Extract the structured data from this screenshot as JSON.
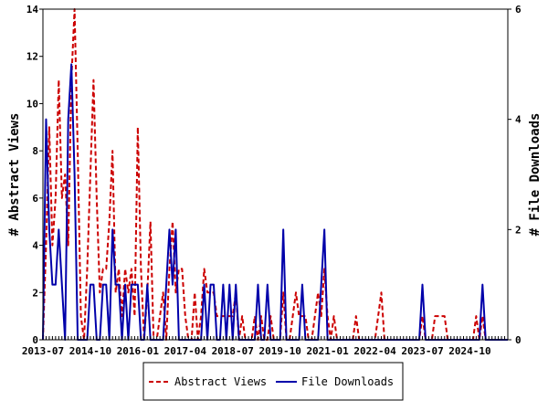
{
  "chart_data": {
    "type": "line",
    "xlabel": "",
    "ylabel_left": "# Abstract Views",
    "ylabel_right": "# File Downloads",
    "ylim_left": [
      0,
      14
    ],
    "ylim_right": [
      0,
      6
    ],
    "yticks_left": [
      0,
      2,
      4,
      6,
      8,
      10,
      12,
      14
    ],
    "yticks_right": [
      0,
      2,
      4,
      6
    ],
    "x_start": "2013-07",
    "x_end": "2025-10",
    "x_tick_labels": [
      "2013-07",
      "2014-10",
      "2016-01",
      "2017-04",
      "2018-07",
      "2019-10",
      "2021-01",
      "2022-04",
      "2023-07",
      "2024-10"
    ],
    "grid": false,
    "legend_position": "bottom",
    "series": [
      {
        "name": "Abstract Views",
        "axis": "left",
        "color": "#cc0000",
        "style": "dashed",
        "points": [
          [
            "2013-07",
            0
          ],
          [
            "2013-08",
            4
          ],
          [
            "2013-09",
            9
          ],
          [
            "2013-10",
            4
          ],
          [
            "2013-11",
            6
          ],
          [
            "2013-12",
            11
          ],
          [
            "2014-01",
            6
          ],
          [
            "2014-02",
            7
          ],
          [
            "2014-03",
            4
          ],
          [
            "2014-04",
            11
          ],
          [
            "2014-05",
            14
          ],
          [
            "2014-06",
            8
          ],
          [
            "2014-07",
            1
          ],
          [
            "2014-08",
            0
          ],
          [
            "2014-09",
            3
          ],
          [
            "2014-10",
            7
          ],
          [
            "2014-11",
            11
          ],
          [
            "2014-12",
            6
          ],
          [
            "2015-01",
            2
          ],
          [
            "2015-02",
            3
          ],
          [
            "2015-03",
            3
          ],
          [
            "2015-04",
            5
          ],
          [
            "2015-05",
            8
          ],
          [
            "2015-06",
            2
          ],
          [
            "2015-07",
            3
          ],
          [
            "2015-08",
            1
          ],
          [
            "2015-09",
            3
          ],
          [
            "2015-10",
            2
          ],
          [
            "2015-11",
            3
          ],
          [
            "2015-12",
            1
          ],
          [
            "2016-01",
            9
          ],
          [
            "2016-02",
            3
          ],
          [
            "2016-03",
            0
          ],
          [
            "2016-04",
            2
          ],
          [
            "2016-05",
            5
          ],
          [
            "2016-06",
            0
          ],
          [
            "2016-07",
            0
          ],
          [
            "2016-08",
            1
          ],
          [
            "2016-09",
            2
          ],
          [
            "2016-10",
            0
          ],
          [
            "2016-11",
            3
          ],
          [
            "2016-12",
            5
          ],
          [
            "2017-01",
            2
          ],
          [
            "2017-02",
            3
          ],
          [
            "2017-03",
            3
          ],
          [
            "2017-04",
            1
          ],
          [
            "2017-05",
            0
          ],
          [
            "2017-06",
            0
          ],
          [
            "2017-07",
            2
          ],
          [
            "2017-08",
            0
          ],
          [
            "2017-09",
            1
          ],
          [
            "2017-10",
            3
          ],
          [
            "2017-11",
            2
          ],
          [
            "2017-12",
            2
          ],
          [
            "2018-01",
            2
          ],
          [
            "2018-02",
            1
          ],
          [
            "2018-03",
            1
          ],
          [
            "2018-04",
            1
          ],
          [
            "2018-05",
            1
          ],
          [
            "2018-06",
            1
          ],
          [
            "2018-07",
            1
          ],
          [
            "2018-08",
            2
          ],
          [
            "2018-09",
            0
          ],
          [
            "2018-10",
            1
          ],
          [
            "2018-11",
            0
          ],
          [
            "2018-12",
            0
          ],
          [
            "2019-01",
            0
          ],
          [
            "2019-02",
            1
          ],
          [
            "2019-03",
            0
          ],
          [
            "2019-04",
            1
          ],
          [
            "2019-05",
            0
          ],
          [
            "2019-06",
            0
          ],
          [
            "2019-07",
            1
          ],
          [
            "2019-08",
            0
          ],
          [
            "2019-09",
            0
          ],
          [
            "2019-10",
            0
          ],
          [
            "2019-11",
            2
          ],
          [
            "2019-12",
            0
          ],
          [
            "2020-01",
            0
          ],
          [
            "2020-02",
            1
          ],
          [
            "2020-03",
            2
          ],
          [
            "2020-04",
            1
          ],
          [
            "2020-05",
            1
          ],
          [
            "2020-06",
            1
          ],
          [
            "2020-07",
            0
          ],
          [
            "2020-08",
            0
          ],
          [
            "2020-09",
            1
          ],
          [
            "2020-10",
            2
          ],
          [
            "2020-11",
            1
          ],
          [
            "2020-12",
            3
          ],
          [
            "2021-01",
            1
          ],
          [
            "2021-02",
            0
          ],
          [
            "2021-03",
            1
          ],
          [
            "2021-04",
            0
          ],
          [
            "2021-05",
            0
          ],
          [
            "2021-06",
            0
          ],
          [
            "2021-07",
            0
          ],
          [
            "2021-08",
            0
          ],
          [
            "2021-09",
            0
          ],
          [
            "2021-10",
            1
          ],
          [
            "2021-11",
            0
          ],
          [
            "2021-12",
            0
          ],
          [
            "2022-01",
            0
          ],
          [
            "2022-02",
            0
          ],
          [
            "2022-03",
            0
          ],
          [
            "2022-04",
            0
          ],
          [
            "2022-05",
            1
          ],
          [
            "2022-06",
            2
          ],
          [
            "2022-07",
            0
          ],
          [
            "2022-08",
            0
          ],
          [
            "2022-09",
            0
          ],
          [
            "2022-10",
            0
          ],
          [
            "2022-11",
            0
          ],
          [
            "2022-12",
            0
          ],
          [
            "2023-01",
            0
          ],
          [
            "2023-02",
            0
          ],
          [
            "2023-03",
            0
          ],
          [
            "2023-04",
            0
          ],
          [
            "2023-05",
            0
          ],
          [
            "2023-06",
            0
          ],
          [
            "2023-07",
            1
          ],
          [
            "2023-08",
            0
          ],
          [
            "2023-09",
            0
          ],
          [
            "2023-10",
            0
          ],
          [
            "2023-11",
            1
          ],
          [
            "2023-12",
            1
          ],
          [
            "2024-01",
            1
          ],
          [
            "2024-02",
            1
          ],
          [
            "2024-03",
            0
          ],
          [
            "2024-04",
            0
          ],
          [
            "2024-05",
            0
          ],
          [
            "2024-06",
            0
          ],
          [
            "2024-07",
            0
          ],
          [
            "2024-08",
            0
          ],
          [
            "2024-09",
            0
          ],
          [
            "2024-10",
            0
          ],
          [
            "2024-11",
            0
          ],
          [
            "2024-12",
            1
          ],
          [
            "2025-01",
            0
          ],
          [
            "2025-02",
            1
          ],
          [
            "2025-03",
            0
          ],
          [
            "2025-04",
            0
          ],
          [
            "2025-05",
            0
          ],
          [
            "2025-06",
            0
          ],
          [
            "2025-07",
            0
          ],
          [
            "2025-08",
            0
          ],
          [
            "2025-09",
            0
          ],
          [
            "2025-10",
            0
          ]
        ]
      },
      {
        "name": "File Downloads",
        "axis": "right",
        "color": "#0000aa",
        "style": "solid",
        "points": [
          [
            "2013-07",
            0
          ],
          [
            "2013-08",
            4
          ],
          [
            "2013-09",
            2
          ],
          [
            "2013-10",
            1
          ],
          [
            "2013-11",
            1
          ],
          [
            "2013-12",
            2
          ],
          [
            "2014-01",
            1
          ],
          [
            "2014-02",
            0
          ],
          [
            "2014-03",
            4
          ],
          [
            "2014-04",
            5
          ],
          [
            "2014-05",
            3
          ],
          [
            "2014-06",
            0
          ],
          [
            "2014-07",
            0
          ],
          [
            "2014-08",
            0
          ],
          [
            "2014-09",
            0
          ],
          [
            "2014-10",
            1
          ],
          [
            "2014-11",
            1
          ],
          [
            "2014-12",
            0
          ],
          [
            "2015-01",
            0
          ],
          [
            "2015-02",
            1
          ],
          [
            "2015-03",
            1
          ],
          [
            "2015-04",
            0
          ],
          [
            "2015-05",
            2
          ],
          [
            "2015-06",
            1
          ],
          [
            "2015-07",
            1
          ],
          [
            "2015-08",
            0
          ],
          [
            "2015-09",
            1
          ],
          [
            "2015-10",
            0
          ],
          [
            "2015-11",
            1
          ],
          [
            "2015-12",
            1
          ],
          [
            "2016-01",
            1
          ],
          [
            "2016-02",
            0
          ],
          [
            "2016-03",
            0
          ],
          [
            "2016-04",
            1
          ],
          [
            "2016-05",
            0
          ],
          [
            "2016-06",
            0
          ],
          [
            "2016-07",
            0
          ],
          [
            "2016-08",
            0
          ],
          [
            "2016-09",
            0
          ],
          [
            "2016-10",
            1
          ],
          [
            "2016-11",
            2
          ],
          [
            "2016-12",
            1
          ],
          [
            "2017-01",
            2
          ],
          [
            "2017-02",
            0
          ],
          [
            "2017-03",
            0
          ],
          [
            "2017-04",
            0
          ],
          [
            "2017-05",
            0
          ],
          [
            "2017-06",
            0
          ],
          [
            "2017-07",
            0
          ],
          [
            "2017-08",
            0
          ],
          [
            "2017-09",
            0
          ],
          [
            "2017-10",
            1
          ],
          [
            "2017-11",
            0
          ],
          [
            "2017-12",
            1
          ],
          [
            "2018-01",
            1
          ],
          [
            "2018-02",
            0
          ],
          [
            "2018-03",
            0
          ],
          [
            "2018-04",
            1
          ],
          [
            "2018-05",
            0
          ],
          [
            "2018-06",
            1
          ],
          [
            "2018-07",
            0
          ],
          [
            "2018-08",
            1
          ],
          [
            "2018-09",
            0
          ],
          [
            "2018-10",
            0
          ],
          [
            "2018-11",
            0
          ],
          [
            "2018-12",
            0
          ],
          [
            "2019-01",
            0
          ],
          [
            "2019-02",
            0
          ],
          [
            "2019-03",
            1
          ],
          [
            "2019-04",
            0
          ],
          [
            "2019-05",
            0
          ],
          [
            "2019-06",
            1
          ],
          [
            "2019-07",
            0
          ],
          [
            "2019-08",
            0
          ],
          [
            "2019-09",
            0
          ],
          [
            "2019-10",
            0
          ],
          [
            "2019-11",
            2
          ],
          [
            "2019-12",
            0
          ],
          [
            "2020-01",
            0
          ],
          [
            "2020-02",
            0
          ],
          [
            "2020-03",
            0
          ],
          [
            "2020-04",
            0
          ],
          [
            "2020-05",
            1
          ],
          [
            "2020-06",
            0
          ],
          [
            "2020-07",
            0
          ],
          [
            "2020-08",
            0
          ],
          [
            "2020-09",
            0
          ],
          [
            "2020-10",
            0
          ],
          [
            "2020-11",
            1
          ],
          [
            "2020-12",
            2
          ],
          [
            "2021-01",
            0
          ],
          [
            "2021-02",
            0
          ],
          [
            "2021-03",
            0
          ],
          [
            "2021-04",
            0
          ],
          [
            "2021-05",
            0
          ],
          [
            "2021-06",
            0
          ],
          [
            "2021-07",
            0
          ],
          [
            "2021-08",
            0
          ],
          [
            "2021-09",
            0
          ],
          [
            "2021-10",
            0
          ],
          [
            "2021-11",
            0
          ],
          [
            "2021-12",
            0
          ],
          [
            "2022-01",
            0
          ],
          [
            "2022-02",
            0
          ],
          [
            "2022-03",
            0
          ],
          [
            "2022-04",
            0
          ],
          [
            "2022-05",
            0
          ],
          [
            "2022-06",
            0
          ],
          [
            "2022-07",
            0
          ],
          [
            "2022-08",
            0
          ],
          [
            "2022-09",
            0
          ],
          [
            "2022-10",
            0
          ],
          [
            "2022-11",
            0
          ],
          [
            "2022-12",
            0
          ],
          [
            "2023-01",
            0
          ],
          [
            "2023-02",
            0
          ],
          [
            "2023-03",
            0
          ],
          [
            "2023-04",
            0
          ],
          [
            "2023-05",
            0
          ],
          [
            "2023-06",
            0
          ],
          [
            "2023-07",
            1
          ],
          [
            "2023-08",
            0
          ],
          [
            "2023-09",
            0
          ],
          [
            "2023-10",
            0
          ],
          [
            "2023-11",
            0
          ],
          [
            "2023-12",
            0
          ],
          [
            "2024-01",
            0
          ],
          [
            "2024-02",
            0
          ],
          [
            "2024-03",
            0
          ],
          [
            "2024-04",
            0
          ],
          [
            "2024-05",
            0
          ],
          [
            "2024-06",
            0
          ],
          [
            "2024-07",
            0
          ],
          [
            "2024-08",
            0
          ],
          [
            "2024-09",
            0
          ],
          [
            "2024-10",
            0
          ],
          [
            "2024-11",
            0
          ],
          [
            "2024-12",
            0
          ],
          [
            "2025-01",
            0
          ],
          [
            "2025-02",
            1
          ],
          [
            "2025-03",
            0
          ],
          [
            "2025-04",
            0
          ],
          [
            "2025-05",
            0
          ],
          [
            "2025-06",
            0
          ],
          [
            "2025-07",
            0
          ],
          [
            "2025-08",
            0
          ],
          [
            "2025-09",
            0
          ],
          [
            "2025-10",
            0
          ]
        ]
      }
    ]
  }
}
